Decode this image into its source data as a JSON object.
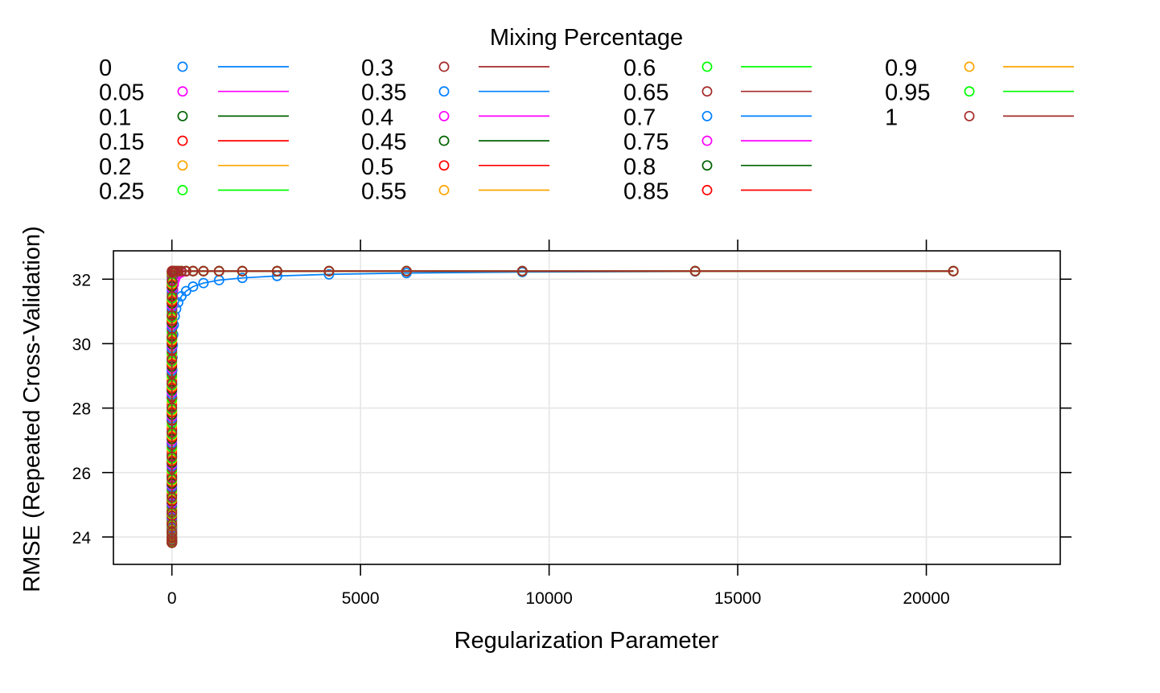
{
  "chart_data": {
    "type": "line",
    "title": "",
    "xlabel": "Regularization Parameter",
    "ylabel": "RMSE (Repeated Cross-Validation)",
    "legend": {
      "title": "Mixing Percentage",
      "placement": "top",
      "columns": 4,
      "markers": "open-circle-and-line"
    },
    "xlim": [
      -1550,
      23550
    ],
    "ylim": [
      23.15,
      32.88
    ],
    "xticks": [
      0,
      5000,
      10000,
      15000,
      20000
    ],
    "xtick_labels": [
      "0",
      "5000",
      "10000",
      "15000",
      "20000"
    ],
    "yticks": [
      24,
      26,
      28,
      30,
      32
    ],
    "ytick_labels": [
      "24",
      "26",
      "28",
      "30",
      "32"
    ],
    "grid": true,
    "palette": [
      "#0080ff",
      "#ff00ff",
      "#006400",
      "#ff0000",
      "#ffa500",
      "#00ff00",
      "#a52a2a"
    ],
    "lambda": [
      0.0022,
      0.0033,
      0.005,
      0.0074,
      0.011,
      0.0166,
      0.0248,
      0.037,
      0.0553,
      0.0826,
      0.1233,
      0.1842,
      0.2751,
      0.4108,
      0.6135,
      0.9162,
      1.368,
      2.043,
      3.051,
      4.557,
      6.805,
      10.16,
      15.18,
      22.67,
      33.85,
      50.55,
      75.49,
      112.7,
      168.4,
      251.4,
      375.5,
      560.7,
      837.4,
      1250.5,
      1867.5,
      2789,
      4165,
      6220,
      9289,
      13872,
      20716
    ],
    "series": [
      {
        "name": "0",
        "color": "#0080ff",
        "lambda": [
          0.0022,
          0.0033,
          0.005,
          0.0074,
          0.011,
          0.0166,
          0.0248,
          0.037,
          0.0553,
          0.0826,
          0.1233,
          0.1842,
          0.2751,
          0.4108,
          0.6135,
          0.9162,
          1.368,
          2.043,
          3.051,
          4.557,
          6.805,
          10.16,
          15.18,
          22.67,
          33.85,
          50.55,
          75.49,
          112.7,
          168.4,
          251.4,
          375.5,
          560.7,
          837.4,
          1250.5,
          1867.5,
          2789,
          4165,
          6220,
          9289,
          13872,
          20716
        ],
        "values": [
          23.82,
          23.83,
          23.84,
          23.86,
          23.88,
          23.92,
          23.97,
          24.05,
          24.16,
          24.3,
          24.5,
          24.75,
          25.05,
          25.42,
          25.85,
          26.3,
          26.8,
          27.3,
          27.8,
          28.28,
          28.75,
          29.18,
          29.58,
          29.95,
          30.28,
          30.58,
          30.85,
          31.08,
          31.28,
          31.47,
          31.63,
          31.77,
          31.88,
          31.97,
          32.04,
          32.1,
          32.15,
          32.19,
          32.22,
          32.24,
          32.25
        ]
      },
      {
        "name": "0.05",
        "color": "#ff00ff",
        "values": [
          23.82,
          23.83,
          23.85,
          23.88,
          23.93,
          24.0,
          24.12,
          24.3,
          24.55,
          24.9,
          25.35,
          25.9,
          26.5,
          27.1,
          27.7,
          28.3,
          28.85,
          29.35,
          29.8,
          30.2,
          30.58,
          30.92,
          31.2,
          31.45,
          31.66,
          31.84,
          31.98,
          32.09,
          32.16,
          32.21,
          32.24,
          32.25,
          32.25,
          32.25,
          32.25,
          32.25,
          32.25,
          32.25,
          32.25,
          32.25,
          32.25
        ]
      },
      {
        "name": "0.1",
        "color": "#006400",
        "values": [
          23.82,
          23.84,
          23.86,
          23.9,
          23.97,
          24.08,
          24.25,
          24.5,
          24.85,
          25.3,
          25.85,
          26.5,
          27.2,
          27.9,
          28.55,
          29.15,
          29.7,
          30.2,
          30.65,
          31.05,
          31.4,
          31.7,
          31.93,
          32.09,
          32.19,
          32.24,
          32.25,
          32.25,
          32.25,
          32.25,
          32.25,
          32.25,
          32.25,
          32.25,
          32.25,
          32.25,
          32.25,
          32.25,
          32.25,
          32.25,
          32.25
        ]
      },
      {
        "name": "0.15",
        "color": "#ff0000",
        "values": [
          23.82,
          23.84,
          23.87,
          23.92,
          24.0,
          24.14,
          24.35,
          24.65,
          25.08,
          25.6,
          26.2,
          26.9,
          27.62,
          28.32,
          28.98,
          29.6,
          30.15,
          30.65,
          31.1,
          31.5,
          31.83,
          32.06,
          32.2,
          32.25,
          32.25,
          32.25,
          32.25,
          32.25,
          32.25,
          32.25,
          32.25,
          32.25,
          32.25,
          32.25,
          32.25,
          32.25,
          32.25,
          32.25,
          32.25,
          32.25,
          32.25
        ]
      },
      {
        "name": "0.2",
        "color": "#ffa500",
        "values": [
          23.82,
          23.84,
          23.88,
          23.94,
          24.04,
          24.2,
          24.45,
          24.8,
          25.28,
          25.85,
          26.5,
          27.2,
          27.92,
          28.62,
          29.28,
          29.9,
          30.45,
          30.95,
          31.4,
          31.78,
          32.05,
          32.2,
          32.25,
          32.25,
          32.25,
          32.25,
          32.25,
          32.25,
          32.25,
          32.25,
          32.25,
          32.25,
          32.25,
          32.25,
          32.25,
          32.25,
          32.25,
          32.25,
          32.25,
          32.25,
          32.25
        ]
      },
      {
        "name": "0.25",
        "color": "#00ff00",
        "values": [
          23.82,
          23.85,
          23.89,
          23.96,
          24.08,
          24.26,
          24.54,
          24.93,
          25.44,
          26.05,
          26.73,
          27.44,
          28.16,
          28.86,
          29.52,
          30.13,
          30.68,
          31.18,
          31.62,
          31.97,
          32.17,
          32.25,
          32.25,
          32.25,
          32.25,
          32.25,
          32.25,
          32.25,
          32.25,
          32.25,
          32.25,
          32.25,
          32.25,
          32.25,
          32.25,
          32.25,
          32.25,
          32.25,
          32.25,
          32.25,
          32.25
        ]
      },
      {
        "name": "0.3",
        "color": "#a52a2a",
        "values": [
          23.82,
          23.85,
          23.9,
          23.98,
          24.11,
          24.31,
          24.62,
          25.04,
          25.58,
          26.21,
          26.9,
          27.62,
          28.35,
          29.05,
          29.71,
          30.32,
          30.87,
          31.37,
          31.8,
          32.1,
          32.23,
          32.25,
          32.25,
          32.25,
          32.25,
          32.25,
          32.25,
          32.25,
          32.25,
          32.25,
          32.25,
          32.25,
          32.25,
          32.25,
          32.25,
          32.25,
          32.25,
          32.25,
          32.25,
          32.25,
          32.25
        ]
      },
      {
        "name": "0.35",
        "color": "#0080ff",
        "values": [
          23.82,
          23.85,
          23.9,
          23.99,
          24.14,
          24.36,
          24.69,
          25.13,
          25.69,
          26.34,
          27.04,
          27.77,
          28.5,
          29.2,
          29.86,
          30.47,
          31.02,
          31.52,
          31.93,
          32.17,
          32.25,
          32.25,
          32.25,
          32.25,
          32.25,
          32.25,
          32.25,
          32.25,
          32.25,
          32.25,
          32.25,
          32.25,
          32.25,
          32.25,
          32.25,
          32.25,
          32.25,
          32.25,
          32.25,
          32.25,
          32.25
        ]
      },
      {
        "name": "0.4",
        "color": "#ff00ff",
        "values": [
          23.82,
          23.85,
          23.91,
          24.01,
          24.16,
          24.4,
          24.75,
          25.21,
          25.79,
          26.45,
          27.16,
          27.9,
          28.63,
          29.33,
          29.99,
          30.6,
          31.15,
          31.64,
          32.02,
          32.21,
          32.25,
          32.25,
          32.25,
          32.25,
          32.25,
          32.25,
          32.25,
          32.25,
          32.25,
          32.25,
          32.25,
          32.25,
          32.25,
          32.25,
          32.25,
          32.25,
          32.25,
          32.25,
          32.25,
          32.25,
          32.25
        ]
      },
      {
        "name": "0.45",
        "color": "#006400",
        "values": [
          23.82,
          23.86,
          23.92,
          24.02,
          24.19,
          24.44,
          24.8,
          25.28,
          25.87,
          26.55,
          27.27,
          28.01,
          28.74,
          29.44,
          30.1,
          30.71,
          31.26,
          31.74,
          32.09,
          32.24,
          32.25,
          32.25,
          32.25,
          32.25,
          32.25,
          32.25,
          32.25,
          32.25,
          32.25,
          32.25,
          32.25,
          32.25,
          32.25,
          32.25,
          32.25,
          32.25,
          32.25,
          32.25,
          32.25,
          32.25,
          32.25
        ]
      },
      {
        "name": "0.5",
        "color": "#ff0000",
        "values": [
          23.82,
          23.86,
          23.92,
          24.03,
          24.21,
          24.47,
          24.85,
          25.34,
          25.95,
          26.64,
          27.37,
          28.11,
          28.84,
          29.54,
          30.2,
          30.81,
          31.36,
          31.83,
          32.14,
          32.25,
          32.25,
          32.25,
          32.25,
          32.25,
          32.25,
          32.25,
          32.25,
          32.25,
          32.25,
          32.25,
          32.25,
          32.25,
          32.25,
          32.25,
          32.25,
          32.25,
          32.25,
          32.25,
          32.25,
          32.25,
          32.25
        ]
      },
      {
        "name": "0.55",
        "color": "#ffa500",
        "values": [
          23.82,
          23.86,
          23.93,
          24.05,
          24.23,
          24.51,
          24.9,
          25.4,
          26.02,
          26.72,
          27.46,
          28.2,
          28.93,
          29.63,
          30.29,
          30.9,
          31.45,
          31.9,
          32.18,
          32.25,
          32.25,
          32.25,
          32.25,
          32.25,
          32.25,
          32.25,
          32.25,
          32.25,
          32.25,
          32.25,
          32.25,
          32.25,
          32.25,
          32.25,
          32.25,
          32.25,
          32.25,
          32.25,
          32.25,
          32.25,
          32.25
        ]
      },
      {
        "name": "0.6",
        "color": "#00ff00",
        "values": [
          23.82,
          23.86,
          23.93,
          24.06,
          24.25,
          24.54,
          24.94,
          25.46,
          26.08,
          26.79,
          27.54,
          28.28,
          29.01,
          29.71,
          30.37,
          30.98,
          31.53,
          31.96,
          32.21,
          32.25,
          32.25,
          32.25,
          32.25,
          32.25,
          32.25,
          32.25,
          32.25,
          32.25,
          32.25,
          32.25,
          32.25,
          32.25,
          32.25,
          32.25,
          32.25,
          32.25,
          32.25,
          32.25,
          32.25,
          32.25,
          32.25
        ]
      },
      {
        "name": "0.65",
        "color": "#a52a2a",
        "values": [
          23.82,
          23.86,
          23.94,
          24.07,
          24.27,
          24.57,
          24.98,
          25.51,
          26.14,
          26.86,
          27.61,
          28.36,
          29.09,
          29.79,
          30.45,
          31.06,
          31.6,
          32.01,
          32.23,
          32.25,
          32.25,
          32.25,
          32.25,
          32.25,
          32.25,
          32.25,
          32.25,
          32.25,
          32.25,
          32.25,
          32.25,
          32.25,
          32.25,
          32.25,
          32.25,
          32.25,
          32.25,
          32.25,
          32.25,
          32.25,
          32.25
        ]
      },
      {
        "name": "0.7",
        "color": "#0080ff",
        "values": [
          23.82,
          23.87,
          23.94,
          24.08,
          24.29,
          24.6,
          25.02,
          25.56,
          26.2,
          26.92,
          27.68,
          28.43,
          29.16,
          29.86,
          30.52,
          31.13,
          31.66,
          32.06,
          32.24,
          32.25,
          32.25,
          32.25,
          32.25,
          32.25,
          32.25,
          32.25,
          32.25,
          32.25,
          32.25,
          32.25,
          32.25,
          32.25,
          32.25,
          32.25,
          32.25,
          32.25,
          32.25,
          32.25,
          32.25,
          32.25,
          32.25
        ]
      },
      {
        "name": "0.75",
        "color": "#ff00ff",
        "values": [
          23.82,
          23.87,
          23.95,
          24.09,
          24.31,
          24.63,
          25.06,
          25.61,
          26.25,
          26.98,
          27.74,
          28.49,
          29.23,
          29.93,
          30.59,
          31.19,
          31.72,
          32.1,
          32.25,
          32.25,
          32.25,
          32.25,
          32.25,
          32.25,
          32.25,
          32.25,
          32.25,
          32.25,
          32.25,
          32.25,
          32.25,
          32.25,
          32.25,
          32.25,
          32.25,
          32.25,
          32.25,
          32.25,
          32.25,
          32.25,
          32.25
        ]
      },
      {
        "name": "0.8",
        "color": "#006400",
        "values": [
          23.82,
          23.87,
          23.95,
          24.1,
          24.33,
          24.66,
          25.1,
          25.65,
          26.3,
          27.04,
          27.8,
          28.56,
          29.29,
          29.99,
          30.65,
          31.25,
          31.77,
          32.13,
          32.25,
          32.25,
          32.25,
          32.25,
          32.25,
          32.25,
          32.25,
          32.25,
          32.25,
          32.25,
          32.25,
          32.25,
          32.25,
          32.25,
          32.25,
          32.25,
          32.25,
          32.25,
          32.25,
          32.25,
          32.25,
          32.25,
          32.25
        ]
      },
      {
        "name": "0.85",
        "color": "#ff0000",
        "values": [
          23.82,
          23.87,
          23.96,
          24.11,
          24.35,
          24.68,
          25.13,
          25.7,
          26.35,
          27.09,
          27.86,
          28.62,
          29.35,
          30.05,
          30.71,
          31.3,
          31.82,
          32.16,
          32.25,
          32.25,
          32.25,
          32.25,
          32.25,
          32.25,
          32.25,
          32.25,
          32.25,
          32.25,
          32.25,
          32.25,
          32.25,
          32.25,
          32.25,
          32.25,
          32.25,
          32.25,
          32.25,
          32.25,
          32.25,
          32.25,
          32.25
        ]
      },
      {
        "name": "0.9",
        "color": "#ffa500",
        "values": [
          23.82,
          23.87,
          23.96,
          24.12,
          24.36,
          24.71,
          25.17,
          25.74,
          26.4,
          27.14,
          27.91,
          28.67,
          29.41,
          30.11,
          30.77,
          31.36,
          31.86,
          32.18,
          32.25,
          32.25,
          32.25,
          32.25,
          32.25,
          32.25,
          32.25,
          32.25,
          32.25,
          32.25,
          32.25,
          32.25,
          32.25,
          32.25,
          32.25,
          32.25,
          32.25,
          32.25,
          32.25,
          32.25,
          32.25,
          32.25,
          32.25
        ]
      },
      {
        "name": "0.95",
        "color": "#00ff00",
        "values": [
          23.82,
          23.87,
          23.97,
          24.13,
          24.38,
          24.73,
          25.2,
          25.78,
          26.44,
          27.19,
          27.96,
          28.72,
          29.46,
          30.16,
          30.82,
          31.41,
          31.9,
          32.2,
          32.25,
          32.25,
          32.25,
          32.25,
          32.25,
          32.25,
          32.25,
          32.25,
          32.25,
          32.25,
          32.25,
          32.25,
          32.25,
          32.25,
          32.25,
          32.25,
          32.25,
          32.25,
          32.25,
          32.25,
          32.25,
          32.25,
          32.25
        ]
      },
      {
        "name": "1",
        "color": "#a52a2a",
        "values": [
          23.82,
          23.88,
          23.97,
          24.14,
          24.4,
          24.76,
          25.23,
          25.82,
          26.49,
          27.24,
          28.01,
          28.77,
          29.51,
          30.21,
          30.87,
          31.46,
          31.94,
          32.22,
          32.25,
          32.25,
          32.25,
          32.25,
          32.25,
          32.25,
          32.25,
          32.25,
          32.25,
          32.25,
          32.25,
          32.25,
          32.25,
          32.25,
          32.25,
          32.25,
          32.25,
          32.25,
          32.25,
          32.25,
          32.25,
          32.25,
          32.25
        ]
      }
    ]
  }
}
